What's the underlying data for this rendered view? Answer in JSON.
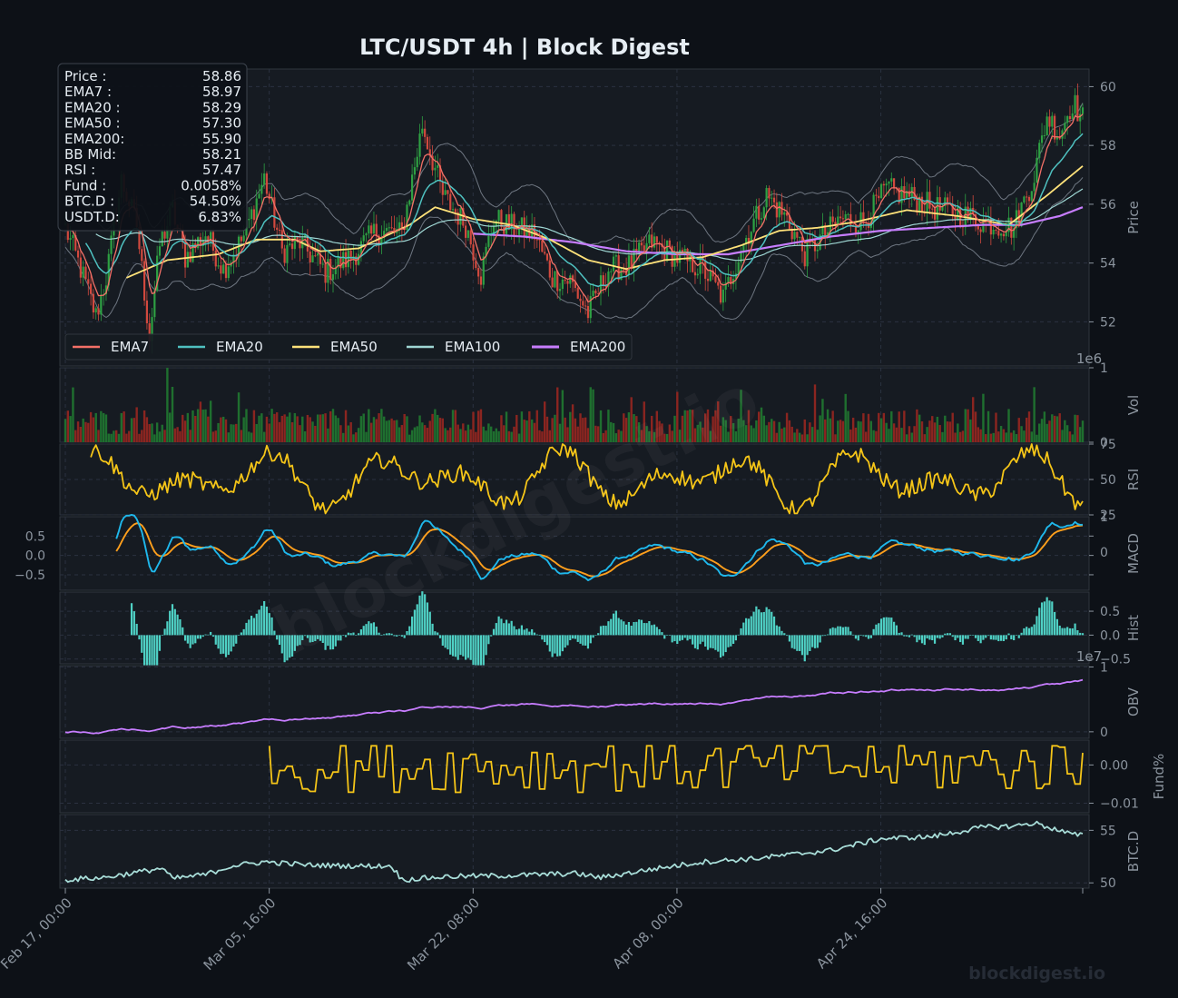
{
  "title": "LTC/USDT  4h  |  Block Digest",
  "watermark": "blockdigest.io",
  "footer_brand": "blockdigest.io",
  "info_box": [
    {
      "label": "Price :",
      "value": "58.86"
    },
    {
      "label": "EMA7  :",
      "value": "58.97"
    },
    {
      "label": "EMA20 :",
      "value": "58.29"
    },
    {
      "label": "EMA50 :",
      "value": "57.30"
    },
    {
      "label": "EMA200:",
      "value": "55.90"
    },
    {
      "label": "BB Mid:",
      "value": "58.21"
    },
    {
      "label": "RSI   :",
      "value": "57.47"
    },
    {
      "label": "Fund  :",
      "value": "0.0058%"
    },
    {
      "label": "BTC.D :",
      "value": "54.50%"
    },
    {
      "label": "USDT.D:",
      "value": "6.83%"
    }
  ],
  "colors": {
    "background": "#0d1117",
    "panel": "#161b22",
    "grid": "#2b3240",
    "up": "#2ea043",
    "down": "#d1493e",
    "ema7": "#f47067",
    "ema20": "#4fc1c0",
    "ema50": "#ffe27a",
    "ema100": "#9fd7d4",
    "ema200": "#c77dff",
    "rsi": "#f5c518",
    "macd": "#1fb8ec",
    "signal": "#ff9f1c",
    "hist": "#4fd1c5",
    "obv": "#c77dff",
    "fund": "#f5c518",
    "btcd": "#a8ddd8"
  },
  "chart_data": {
    "type": "line",
    "x_tick_labels": [
      "Feb 17, 00:00",
      "Mar 05, 16:00",
      "Mar 22, 08:00",
      "Apr 08, 00:00",
      "Apr 24, 16:00"
    ],
    "legend": [
      "EMA7",
      "EMA20",
      "EMA50",
      "EMA100",
      "EMA200"
    ],
    "panels": [
      {
        "key": "price",
        "ylabel": "Price",
        "ylim": [
          50.5,
          60.6
        ],
        "ticks": [
          "52",
          "54",
          "56",
          "58",
          "60"
        ],
        "tick_values": [
          52,
          54,
          56,
          58,
          60
        ],
        "close_keypoints": [
          [
            0,
            55.2
          ],
          [
            6,
            53.8
          ],
          [
            12,
            52.2
          ],
          [
            16,
            53.5
          ],
          [
            22,
            56.8
          ],
          [
            28,
            55.3
          ],
          [
            33,
            51.5
          ],
          [
            37,
            54.6
          ],
          [
            42,
            55.8
          ],
          [
            47,
            54.2
          ],
          [
            55,
            55.0
          ],
          [
            62,
            53.8
          ],
          [
            70,
            54.9
          ],
          [
            78,
            56.9
          ],
          [
            85,
            54.4
          ],
          [
            92,
            54.7
          ],
          [
            102,
            53.7
          ],
          [
            112,
            54.2
          ],
          [
            122,
            55.1
          ],
          [
            132,
            55.0
          ],
          [
            140,
            58.7
          ],
          [
            148,
            56.3
          ],
          [
            157,
            55.3
          ],
          [
            163,
            53.6
          ],
          [
            168,
            55.5
          ],
          [
            176,
            55.2
          ],
          [
            184,
            55.0
          ],
          [
            191,
            53.5
          ],
          [
            198,
            53.4
          ],
          [
            205,
            52.3
          ],
          [
            213,
            53.8
          ],
          [
            221,
            53.9
          ],
          [
            230,
            54.7
          ],
          [
            240,
            54.2
          ],
          [
            250,
            53.8
          ],
          [
            258,
            52.8
          ],
          [
            265,
            54.5
          ],
          [
            275,
            56.3
          ],
          [
            283,
            55.5
          ],
          [
            290,
            54.3
          ],
          [
            297,
            54.9
          ],
          [
            304,
            55.5
          ],
          [
            313,
            55.4
          ],
          [
            322,
            56.5
          ],
          [
            330,
            56.3
          ],
          [
            340,
            55.9
          ],
          [
            350,
            55.7
          ],
          [
            360,
            55.4
          ],
          [
            372,
            55.2
          ],
          [
            380,
            57.0
          ],
          [
            385,
            59.0
          ],
          [
            390,
            58.4
          ],
          [
            395,
            59.5
          ],
          [
            399,
            58.9
          ]
        ],
        "ema50_keypoints": [
          [
            24,
            53.5
          ],
          [
            40,
            54.1
          ],
          [
            60,
            54.3
          ],
          [
            75,
            54.8
          ],
          [
            90,
            54.8
          ],
          [
            100,
            54.4
          ],
          [
            115,
            54.5
          ],
          [
            135,
            55.3
          ],
          [
            145,
            55.9
          ],
          [
            160,
            55.5
          ],
          [
            175,
            55.3
          ],
          [
            190,
            54.8
          ],
          [
            205,
            54.1
          ],
          [
            220,
            53.8
          ],
          [
            235,
            54.1
          ],
          [
            250,
            54.2
          ],
          [
            265,
            54.6
          ],
          [
            280,
            55.1
          ],
          [
            295,
            55.2
          ],
          [
            310,
            55.4
          ],
          [
            330,
            55.8
          ],
          [
            350,
            55.6
          ],
          [
            370,
            55.3
          ],
          [
            385,
            56.3
          ],
          [
            399,
            57.3
          ]
        ],
        "ema200_keypoints": [
          [
            160,
            55.0
          ],
          [
            180,
            54.9
          ],
          [
            200,
            54.7
          ],
          [
            220,
            54.4
          ],
          [
            240,
            54.3
          ],
          [
            260,
            54.3
          ],
          [
            280,
            54.6
          ],
          [
            300,
            54.9
          ],
          [
            320,
            55.1
          ],
          [
            340,
            55.2
          ],
          [
            360,
            55.3
          ],
          [
            375,
            55.3
          ],
          [
            390,
            55.6
          ],
          [
            399,
            55.9
          ]
        ]
      },
      {
        "key": "volume",
        "ylabel": "Vol",
        "ylim": [
          0,
          1
        ],
        "ticks": [
          "0",
          "1"
        ],
        "tick_values": [
          0,
          1
        ],
        "multiplier": "1e6"
      },
      {
        "key": "rsi",
        "ylabel": "RSI",
        "ylim": [
          25,
          75
        ],
        "ticks": [
          "25",
          "50",
          "75"
        ],
        "tick_values": [
          25,
          50,
          75
        ]
      },
      {
        "key": "macd",
        "ylabel": "MACD",
        "ylim": [
          -0.9,
          1.0
        ],
        "ticks": [
          "−0.5",
          "0.0",
          "0.5"
        ],
        "tick_values": [
          -0.5,
          0,
          0.5
        ],
        "right_ticks": [
          "0",
          "1"
        ],
        "right_tick_values": [
          0,
          1
        ]
      },
      {
        "key": "hist",
        "ylabel": "Hist",
        "ylim": [
          -0.6,
          0.9
        ],
        "ticks": [
          "−0.5",
          "0.0",
          "0.5"
        ],
        "tick_values": [
          -0.5,
          0,
          0.5
        ]
      },
      {
        "key": "obv",
        "ylabel": "OBV",
        "ylim": [
          -0.1,
          1.02
        ],
        "ticks": [
          "0",
          "1"
        ],
        "tick_values": [
          0,
          1
        ],
        "multiplier": "1e7"
      },
      {
        "key": "fund",
        "ylabel": "Fund%",
        "ylim": [
          -0.0125,
          0.0065
        ],
        "ticks": [
          "−0.01",
          "0.00"
        ],
        "tick_values": [
          -0.01,
          0
        ]
      },
      {
        "key": "btcd",
        "ylabel": "BTC.D",
        "ylim": [
          49.5,
          56.5
        ],
        "ticks": [
          "50",
          "55"
        ],
        "tick_values": [
          50,
          55
        ],
        "keypoints": [
          [
            0,
            50.3
          ],
          [
            15,
            50.5
          ],
          [
            28,
            51.0
          ],
          [
            38,
            51.4
          ],
          [
            42,
            50.4
          ],
          [
            55,
            50.8
          ],
          [
            65,
            51.6
          ],
          [
            78,
            52.0
          ],
          [
            95,
            51.7
          ],
          [
            115,
            51.6
          ],
          [
            128,
            51.6
          ],
          [
            132,
            50.3
          ],
          [
            150,
            50.6
          ],
          [
            175,
            50.7
          ],
          [
            200,
            50.9
          ],
          [
            210,
            50.5
          ],
          [
            230,
            51.3
          ],
          [
            250,
            52.0
          ],
          [
            270,
            52.3
          ],
          [
            300,
            53.1
          ],
          [
            320,
            54.2
          ],
          [
            340,
            54.4
          ],
          [
            360,
            55.3
          ],
          [
            372,
            55.4
          ],
          [
            380,
            55.7
          ],
          [
            395,
            54.6
          ],
          [
            399,
            54.5
          ]
        ]
      }
    ]
  }
}
